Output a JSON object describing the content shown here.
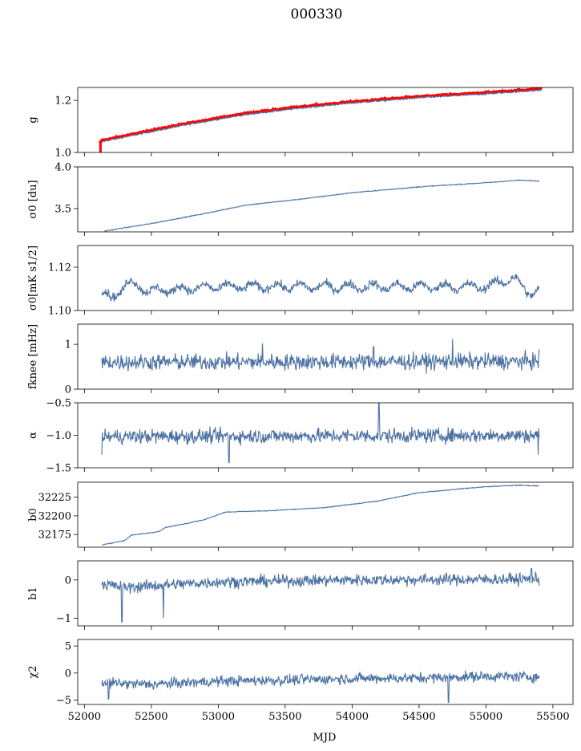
{
  "title": "000330",
  "chart_data": {
    "type": "line",
    "shared_x": {
      "label": "MJD",
      "range": [
        51950,
        55650
      ],
      "ticks": [
        52000,
        52500,
        53000,
        53500,
        54000,
        54500,
        55000,
        55500
      ],
      "tick_labels": [
        "52000",
        "52500",
        "53000",
        "53500",
        "54000",
        "54500",
        "55000",
        "55500"
      ]
    },
    "series_color": "#4c72a3",
    "highlight_color": "#ff0000",
    "panels": [
      {
        "id": "g",
        "ylabel": "g",
        "ylim": [
          1.0,
          1.25
        ],
        "yticks": [
          1.0,
          1.2
        ],
        "ytick_labels": [
          "1.0",
          "1.2"
        ],
        "x_start": 52120,
        "x_end": 55420,
        "trend": [
          [
            52120,
            1.04
          ],
          [
            52500,
            1.08
          ],
          [
            52800,
            1.11
          ],
          [
            53200,
            1.145
          ],
          [
            53600,
            1.17
          ],
          [
            54000,
            1.19
          ],
          [
            54500,
            1.21
          ],
          [
            55000,
            1.225
          ],
          [
            55420,
            1.24
          ]
        ],
        "noise": 0.002,
        "red_overlay": true,
        "red_offset": 0.006,
        "red_spike": [
          52120,
          1.0,
          1.04
        ]
      },
      {
        "id": "sigma0_du",
        "ylabel": "σ0 [du]",
        "ylim": [
          3.22,
          4.0
        ],
        "yticks": [
          3.5,
          4.0
        ],
        "ytick_labels": [
          "3.5",
          "4.0"
        ],
        "x_start": 52150,
        "x_end": 55400,
        "trend": [
          [
            52150,
            3.23
          ],
          [
            52500,
            3.32
          ],
          [
            52900,
            3.44
          ],
          [
            53200,
            3.54
          ],
          [
            53600,
            3.61
          ],
          [
            54000,
            3.69
          ],
          [
            54500,
            3.76
          ],
          [
            55000,
            3.81
          ],
          [
            55250,
            3.84
          ],
          [
            55400,
            3.83
          ]
        ],
        "noise": 0.004
      },
      {
        "id": "sigma0_mk",
        "ylabel": "σ0[mK s1/2]",
        "ylim": [
          1.1,
          1.13
        ],
        "yticks": [
          1.1,
          1.12
        ],
        "ytick_labels": [
          "1.10",
          "1.12"
        ],
        "x_start": 52130,
        "x_end": 55400,
        "trend": [
          [
            52130,
            1.109
          ],
          [
            52200,
            1.105
          ],
          [
            52320,
            1.113
          ],
          [
            52500,
            1.109
          ],
          [
            53000,
            1.111
          ],
          [
            53500,
            1.111
          ],
          [
            54000,
            1.111
          ],
          [
            54500,
            1.111
          ],
          [
            55000,
            1.111
          ],
          [
            55200,
            1.115
          ],
          [
            55330,
            1.108
          ],
          [
            55400,
            1.109
          ]
        ],
        "noise": 0.0014,
        "wave_amp": 0.0016,
        "wave_period": 180
      },
      {
        "id": "fknee",
        "ylabel": "fknee [mHz]",
        "ylim": [
          0,
          1.45
        ],
        "yticks": [
          0,
          1
        ],
        "ytick_labels": [
          "0",
          "1"
        ],
        "x_start": 52130,
        "x_end": 55400,
        "trend": [
          [
            52130,
            0.6
          ],
          [
            55400,
            0.62
          ]
        ],
        "noise": 0.13,
        "spikes": [
          [
            54750,
            1.12
          ],
          [
            53330,
            1.02
          ],
          [
            54160,
            0.95
          ]
        ]
      },
      {
        "id": "alpha",
        "ylabel": "α",
        "ylim": [
          -1.5,
          -0.5
        ],
        "yticks": [
          -1.5,
          -1.0,
          -0.5
        ],
        "ytick_labels": [
          "−1.5",
          "−1.0",
          "−0.5"
        ],
        "x_start": 52130,
        "x_end": 55400,
        "trend": [
          [
            52130,
            -1.02
          ],
          [
            55400,
            -1.0
          ]
        ],
        "noise": 0.08,
        "spikes": [
          [
            54200,
            -0.47
          ],
          [
            52130,
            -1.3
          ],
          [
            53080,
            -1.42
          ],
          [
            55390,
            -1.3
          ]
        ]
      },
      {
        "id": "b0",
        "ylabel": "b0",
        "ylim": [
          32158,
          32245
        ],
        "yticks": [
          32175,
          32200,
          32225
        ],
        "ytick_labels": [
          "32175",
          "32200",
          "32225"
        ],
        "x_start": 52130,
        "x_end": 55400,
        "trend": [
          [
            52130,
            32161
          ],
          [
            52300,
            32167
          ],
          [
            52350,
            32174
          ],
          [
            52560,
            32179
          ],
          [
            52600,
            32184
          ],
          [
            52900,
            32195
          ],
          [
            53050,
            32205
          ],
          [
            53400,
            32207
          ],
          [
            53800,
            32211
          ],
          [
            54200,
            32220
          ],
          [
            54500,
            32231
          ],
          [
            54800,
            32236
          ],
          [
            55000,
            32239
          ],
          [
            55250,
            32241
          ],
          [
            55400,
            32240
          ]
        ],
        "noise": 0.4
      },
      {
        "id": "b1",
        "ylabel": "b1",
        "ylim": [
          -1.2,
          0.5
        ],
        "yticks": [
          -1,
          0
        ],
        "ytick_labels": [
          "−1",
          "0"
        ],
        "x_start": 52130,
        "x_end": 55400,
        "trend": [
          [
            52130,
            -0.1
          ],
          [
            52300,
            -0.2
          ],
          [
            52500,
            -0.15
          ],
          [
            53000,
            -0.05
          ],
          [
            54000,
            0.0
          ],
          [
            55400,
            0.02
          ]
        ],
        "noise": 0.11,
        "spikes": [
          [
            52280,
            -1.1
          ],
          [
            52590,
            -1.0
          ],
          [
            55340,
            0.3
          ]
        ]
      },
      {
        "id": "chi2",
        "ylabel": "χ2",
        "ylim": [
          -5.8,
          6.2
        ],
        "yticks": [
          -5,
          0,
          5
        ],
        "ytick_labels": [
          "−5",
          "0",
          "5"
        ],
        "x_start": 52130,
        "x_end": 55400,
        "trend": [
          [
            52130,
            -1.8
          ],
          [
            52500,
            -2.1
          ],
          [
            53000,
            -1.5
          ],
          [
            53500,
            -1.3
          ],
          [
            54000,
            -1.0
          ],
          [
            54500,
            -0.9
          ],
          [
            55000,
            -0.6
          ],
          [
            55400,
            -0.7
          ]
        ],
        "noise": 0.7,
        "spikes": [
          [
            54720,
            -5.4
          ],
          [
            52180,
            -4.8
          ]
        ]
      }
    ]
  }
}
